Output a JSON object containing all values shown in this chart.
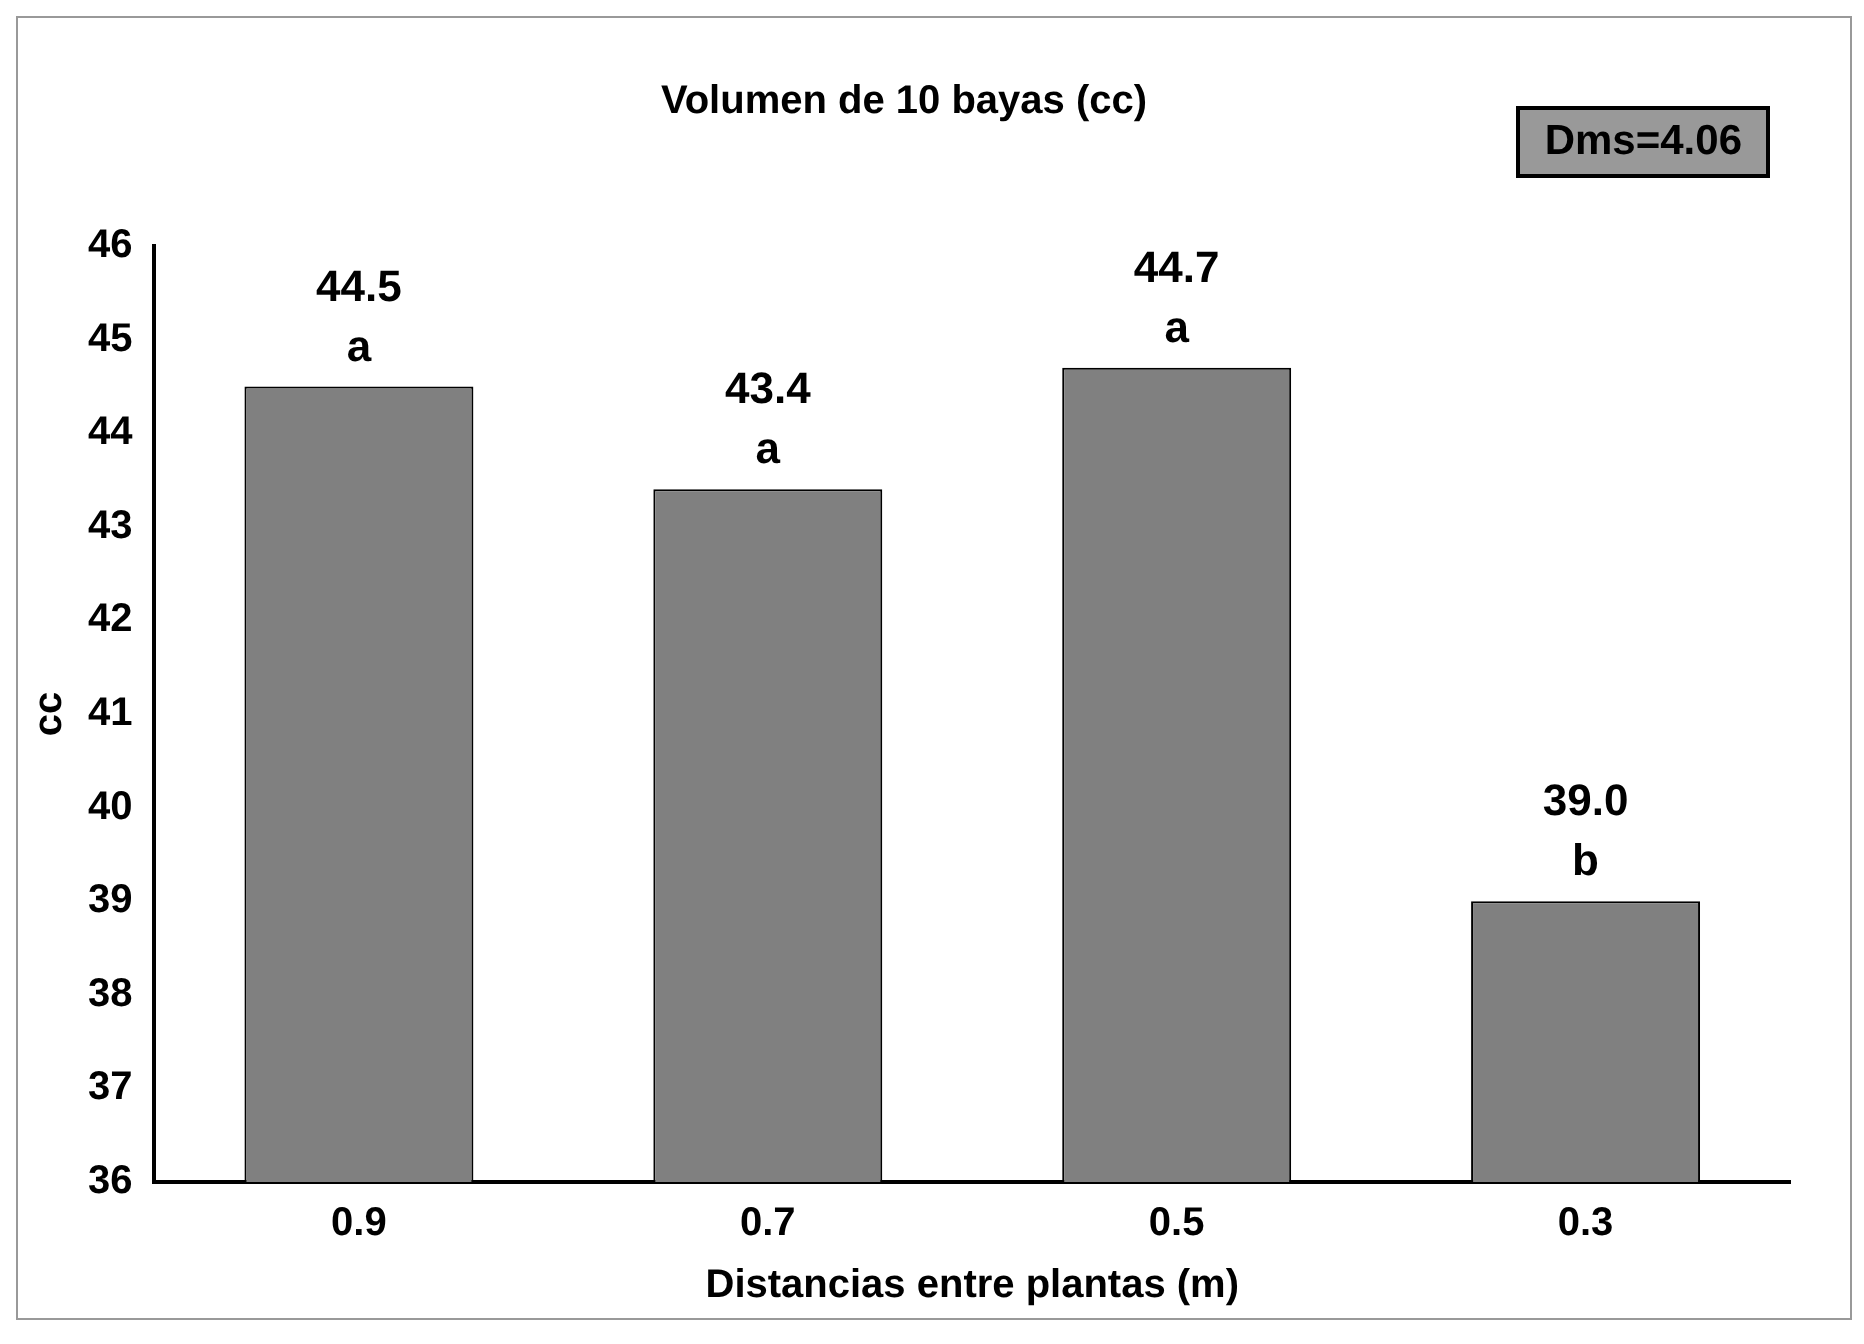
{
  "chart_data": {
    "type": "bar",
    "title": "Volumen de 10 bayas (cc)",
    "xlabel": "Distancias entre plantas (m)",
    "ylabel": "cc",
    "categories": [
      "0.9",
      "0.7",
      "0.5",
      "0.3"
    ],
    "values": [
      44.5,
      43.4,
      44.7,
      39.0
    ],
    "value_labels": [
      "44.5",
      "43.4",
      "44.7",
      "39.0"
    ],
    "color": "#808080",
    "ylim": [
      36,
      46
    ],
    "yticks": [
      36,
      37,
      38,
      39,
      40,
      41,
      42,
      43,
      44,
      45,
      46
    ],
    "grid": false,
    "legend": false,
    "annotations": [
      {
        "text": "a",
        "x": "0.9",
        "y": 44.5
      },
      {
        "text": "a",
        "x": "0.7",
        "y": 43.4
      },
      {
        "text": "a",
        "x": "0.5",
        "y": 44.7
      },
      {
        "text": "b",
        "x": "0.3",
        "y": 39.0
      },
      "Dms=4.06"
    ]
  }
}
